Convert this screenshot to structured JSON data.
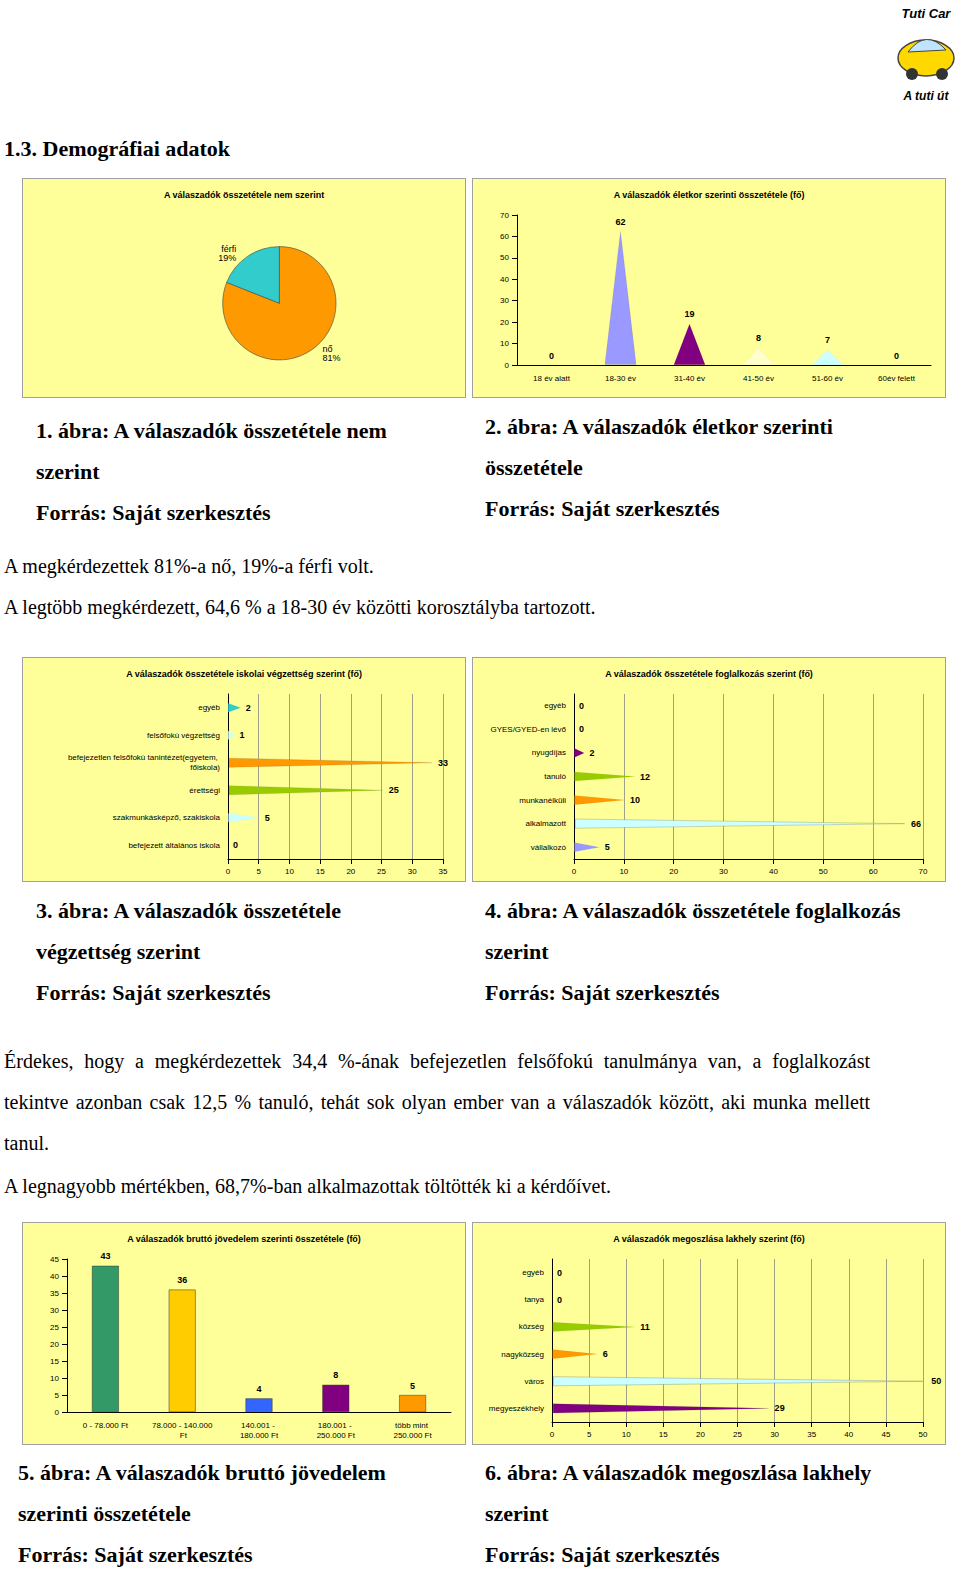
{
  "header": {
    "logo_top": "Tuti Car",
    "logo_bottom": "A tuti út"
  },
  "section_title": "1.3. Demográfiai adatok",
  "chart_data": [
    {
      "type": "pie",
      "title": "A válaszadók összetétele nem szerint",
      "categories": [
        "nő",
        "férfi"
      ],
      "values": [
        81,
        19
      ],
      "value_labels": [
        "81%",
        "19%"
      ],
      "colors": [
        "#ff9900",
        "#33cccc"
      ],
      "data_labels": true
    },
    {
      "type": "bar",
      "title": "A válaszadók életkor szerinti összetétele (fő)",
      "categories": [
        "18 év alatt",
        "18-30 év",
        "31-40 év",
        "41-50 év",
        "51-60 év",
        "60év felett"
      ],
      "values": [
        0,
        62,
        19,
        8,
        7,
        0
      ],
      "colors": [
        "#9999ff",
        "#9999ff",
        "#800080",
        "#ffffcc",
        "#ccffff",
        "#ff9900"
      ],
      "ylim": [
        0,
        70
      ],
      "yticks": [
        0,
        10,
        20,
        30,
        40,
        50,
        60,
        70
      ],
      "grid": false,
      "marker": "cone",
      "data_labels": true
    },
    {
      "type": "bar",
      "title": "A válaszadók összetétele iskolai végzettség szerint (fő)",
      "orientation": "horizontal",
      "categories": [
        "egyéb",
        "felsőfokú végzettség",
        "befejezetlen felsőfokú tanintézet(egyetem, főiskola)",
        "érettségi",
        "szakmunkásképző, szakiskola",
        "befejezett általános iskola"
      ],
      "values": [
        2,
        1,
        33,
        25,
        5,
        0
      ],
      "colors": [
        "#33cccc",
        "#ccffff",
        "#ff9900",
        "#99cc00",
        "#ccffff",
        "#800080"
      ],
      "xlim": [
        0,
        35
      ],
      "xticks": [
        0,
        5,
        10,
        15,
        20,
        25,
        30,
        35
      ],
      "grid": true,
      "marker": "cone",
      "data_labels": true
    },
    {
      "type": "bar",
      "title": "A válaszadók összetétele foglalkozás szerint (fő)",
      "orientation": "horizontal",
      "categories": [
        "egyéb",
        "GYES/GYED-en lévő",
        "nyugdíjas",
        "tanuló",
        "munkanélküli",
        "alkalmazott",
        "vállalkozó"
      ],
      "values": [
        0,
        0,
        2,
        12,
        10,
        66,
        5
      ],
      "colors": [
        "#339966",
        "#3366ff",
        "#800080",
        "#99cc00",
        "#ff9900",
        "#ccffff",
        "#9999ff"
      ],
      "xlim": [
        0,
        70
      ],
      "xticks": [
        0,
        10,
        20,
        30,
        40,
        50,
        60,
        70
      ],
      "grid": true,
      "marker": "cone",
      "data_labels": true
    },
    {
      "type": "bar",
      "title": "A válaszadók bruttó jövedelem szerinti összetétele (fő)",
      "categories": [
        "0 - 78.000 Ft",
        "78.000 - 140.000 Ft",
        "140.001 - 180.000 Ft",
        "180.001 - 250.000 Ft",
        "több mint 250.000 Ft"
      ],
      "values": [
        43,
        36,
        4,
        8,
        5
      ],
      "colors": [
        "#339966",
        "#ffcc00",
        "#3366ff",
        "#800080",
        "#ff9900"
      ],
      "ylim": [
        0,
        45
      ],
      "yticks": [
        0,
        5,
        10,
        15,
        20,
        25,
        30,
        35,
        40,
        45
      ],
      "grid": false,
      "marker": "cylinder",
      "data_labels": true
    },
    {
      "type": "bar",
      "title": "A válaszadók megoszlása lakhely szerint (fő)",
      "orientation": "horizontal",
      "categories": [
        "egyéb",
        "tanya",
        "község",
        "nagyközség",
        "város",
        "megyeszékhely"
      ],
      "values": [
        0,
        0,
        11,
        6,
        50,
        29
      ],
      "colors": [
        "#339966",
        "#3366ff",
        "#99cc00",
        "#ff9900",
        "#ccffff",
        "#800080"
      ],
      "xlim": [
        0,
        50
      ],
      "xticks": [
        0,
        5,
        10,
        15,
        20,
        25,
        30,
        35,
        40,
        45,
        50
      ],
      "grid": true,
      "marker": "cone",
      "data_labels": true
    }
  ],
  "captions": [
    [
      "1. ábra: A válaszadók összetétele nem szerint",
      "Forrás: Saját szerkesztés"
    ],
    [
      "2. ábra: A válaszadók életkor szerinti összetétele",
      "Forrás: Saját szerkesztés"
    ],
    [
      "3. ábra: A válaszadók összetétele végzettség szerint",
      "Forrás: Saját szerkesztés"
    ],
    [
      "4. ábra: A válaszadók összetétele foglalkozás szerint",
      "Forrás: Saját szerkesztés"
    ],
    [
      "5. ábra: A válaszadók bruttó jövedelem szerinti összetétele",
      "Forrás: Saját szerkesztés"
    ],
    [
      "6. ábra: A válaszadók megoszlása lakhely szerint",
      "Forrás: Saját szerkesztés"
    ]
  ],
  "paragraphs": {
    "after_row1": [
      "A megkérdezettek 81%-a nő, 19%-a férfi volt.",
      "A legtöbb megkérdezett, 64,6 % a 18-30 év közötti korosztályba tartozott."
    ],
    "after_row2": [
      "Érdekes, hogy a megkérdezettek 34,4 %-ának befejezetlen felsőfokú tanulmánya van, a foglalkozást tekintve azonban csak 12,5 % tanuló, tehát sok olyan ember van a válaszadók között, aki munka mellett tanul.",
      "A legnagyobb mértékben, 68,7%-ban alkalmazottak töltötték ki a kérdőívet."
    ]
  }
}
